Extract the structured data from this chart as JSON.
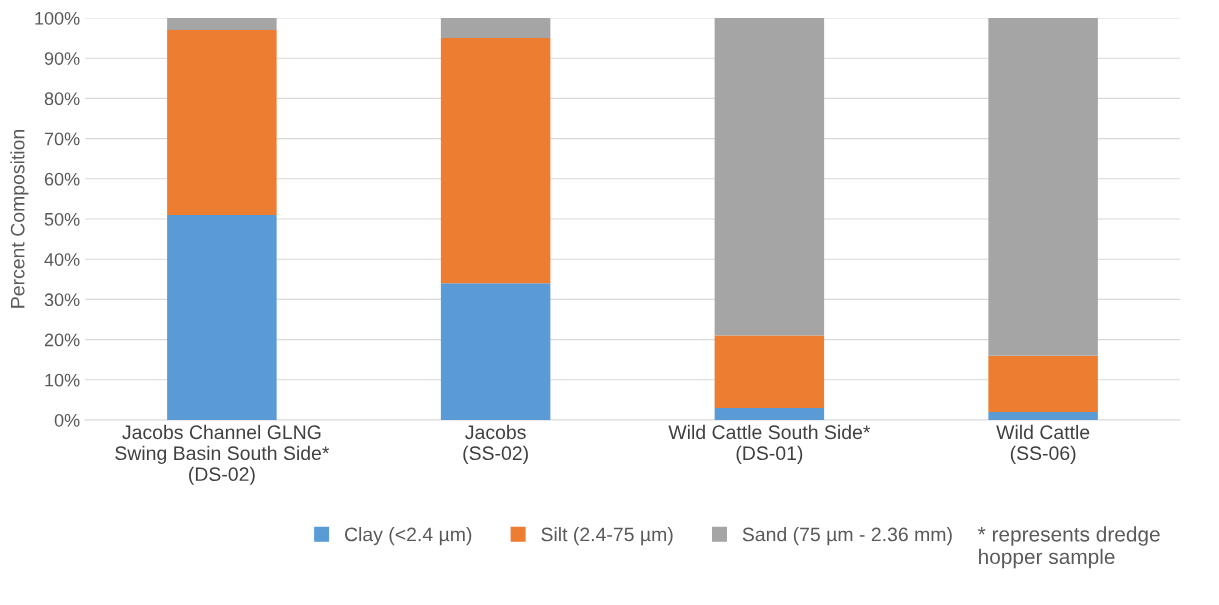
{
  "chart_data": {
    "type": "bar",
    "stacked": true,
    "ylabel": "Percent Composition",
    "categories": [
      "Jacobs Channel GLNG\nSwing Basin South Side*\n(DS-02)",
      "Jacobs\n(SS-02)",
      "Wild Cattle South Side*\n(DS-01)",
      "Wild Cattle\n(SS-06)"
    ],
    "series": [
      {
        "name": "Clay (<2.4 µm)",
        "color": "#5b9bd5",
        "values": [
          51,
          34,
          3,
          2
        ]
      },
      {
        "name": "Silt (2.4-75 µm)",
        "color": "#ed7d31",
        "values": [
          46,
          61,
          18,
          14
        ]
      },
      {
        "name": "Sand (75 µm - 2.36 mm)",
        "color": "#a5a5a5",
        "values": [
          3,
          5,
          79,
          84
        ]
      }
    ],
    "ylim": [
      0,
      100
    ],
    "yticks": [
      {
        "value": 0,
        "label": "0%"
      },
      {
        "value": 10,
        "label": "10%"
      },
      {
        "value": 20,
        "label": "20%"
      },
      {
        "value": 30,
        "label": "30%"
      },
      {
        "value": 40,
        "label": "40%"
      },
      {
        "value": 50,
        "label": "50%"
      },
      {
        "value": 60,
        "label": "60%"
      },
      {
        "value": 70,
        "label": "70%"
      },
      {
        "value": 80,
        "label": "80%"
      },
      {
        "value": 90,
        "label": "90%"
      },
      {
        "value": 100,
        "label": "100%"
      }
    ],
    "grid": "y",
    "legend": "bottom",
    "annotations": [
      "* represents dredge\nhopper sample"
    ]
  }
}
